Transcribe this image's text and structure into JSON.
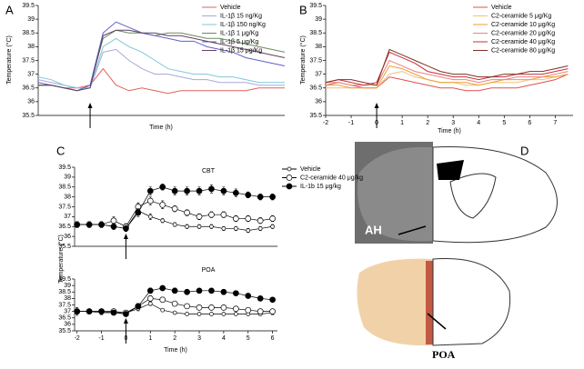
{
  "chart_data": [
    {
      "type": "line",
      "panel_label": "A",
      "xlabel": "Time (h)",
      "ylabel": "Temperature (°C)",
      "x": [
        -2,
        -1.5,
        -1,
        -0.5,
        0,
        0.5,
        1,
        1.5,
        2,
        2.5,
        3,
        3.5,
        4,
        4.5,
        5,
        5.5,
        6,
        6.5,
        7,
        7.5
      ],
      "xlim": [
        -2,
        7.5
      ],
      "arrow_x": 0,
      "ylim": [
        35.5,
        39.5
      ],
      "yticks": [
        35.5,
        36,
        36.5,
        37,
        37.5,
        38,
        38.5,
        39,
        39.5
      ],
      "series": [
        {
          "name": "Vehicle",
          "color": "#e06060",
          "values": [
            36.6,
            36.6,
            36.5,
            36.5,
            36.6,
            37.2,
            36.6,
            36.4,
            36.5,
            36.4,
            36.3,
            36.4,
            36.4,
            36.4,
            36.4,
            36.4,
            36.4,
            36.5,
            36.5,
            36.5
          ]
        },
        {
          "name": "IL-1β 15 ng/Kg",
          "color": "#a8a8d8",
          "values": [
            36.8,
            36.7,
            36.6,
            36.5,
            36.5,
            37.8,
            37.9,
            37.5,
            37.2,
            37.0,
            37.0,
            36.9,
            36.8,
            36.8,
            36.7,
            36.7,
            36.7,
            36.6,
            36.6,
            36.6
          ]
        },
        {
          "name": "IL-1β 150 ng/Kg",
          "color": "#80c8d8",
          "values": [
            36.9,
            36.8,
            36.6,
            36.5,
            36.5,
            38.0,
            38.3,
            38.0,
            37.8,
            37.5,
            37.2,
            37.1,
            37.0,
            37.0,
            36.9,
            36.9,
            36.8,
            36.7,
            36.7,
            36.7
          ]
        },
        {
          "name": "IL-1β 1 μg/Kg",
          "color": "#6a8a60",
          "values": [
            36.6,
            36.6,
            36.5,
            36.4,
            36.6,
            38.3,
            38.6,
            38.5,
            38.5,
            38.4,
            38.5,
            38.5,
            38.4,
            38.3,
            38.3,
            38.2,
            38.1,
            38.0,
            37.9,
            37.8
          ]
        },
        {
          "name": "IL-1β 5 μg/Kg",
          "color": "#6060c8",
          "values": [
            36.7,
            36.6,
            36.5,
            36.4,
            36.6,
            38.5,
            38.9,
            38.7,
            38.5,
            38.4,
            38.3,
            38.2,
            38.2,
            38.0,
            37.9,
            37.8,
            37.6,
            37.5,
            37.4,
            37.3
          ]
        },
        {
          "name": "IL-1β 15 μg/Kg",
          "color": "#604060",
          "values": [
            36.6,
            36.6,
            36.5,
            36.4,
            36.5,
            38.4,
            38.6,
            38.6,
            38.5,
            38.5,
            38.4,
            38.4,
            38.3,
            38.2,
            38.1,
            38.0,
            37.9,
            37.8,
            37.7,
            37.6
          ]
        }
      ]
    },
    {
      "type": "line",
      "panel_label": "B",
      "xlabel": "Time (h)",
      "ylabel": "Temperature (°C)",
      "x": [
        -2,
        -1.5,
        -1,
        -0.5,
        0,
        0.5,
        1,
        1.5,
        2,
        2.5,
        3,
        3.5,
        4,
        4.5,
        5,
        5.5,
        6,
        6.5,
        7,
        7.5
      ],
      "xlim": [
        -2,
        7.7
      ],
      "arrow_x": 0,
      "xticks": [
        -2,
        -1,
        0,
        1,
        2,
        3,
        4,
        5,
        6,
        7
      ],
      "ylim": [
        35.5,
        39.5
      ],
      "yticks": [
        35.5,
        36,
        36.5,
        37,
        37.5,
        38,
        38.5,
        39,
        39.5
      ],
      "series": [
        {
          "name": "Vehicle",
          "color": "#e05050",
          "values": [
            36.6,
            36.7,
            36.6,
            36.5,
            36.5,
            36.9,
            36.8,
            36.7,
            36.6,
            36.5,
            36.5,
            36.4,
            36.4,
            36.5,
            36.5,
            36.5,
            36.6,
            36.7,
            36.8,
            37.0
          ]
        },
        {
          "name": "C2-ceramide 5 μg/Kg",
          "color": "#f0c080",
          "values": [
            36.5,
            36.5,
            36.5,
            36.5,
            36.5,
            37.0,
            37.1,
            36.9,
            36.8,
            36.7,
            36.7,
            36.6,
            36.6,
            36.7,
            36.7,
            36.7,
            36.8,
            36.8,
            36.9,
            37.0
          ]
        },
        {
          "name": "C2-ceramide 10 μg/Kg",
          "color": "#e8a030",
          "values": [
            36.6,
            36.6,
            36.5,
            36.5,
            36.5,
            37.3,
            37.2,
            37.0,
            36.8,
            36.7,
            36.7,
            36.7,
            36.6,
            36.7,
            36.8,
            36.8,
            36.8,
            36.9,
            36.9,
            37.0
          ]
        },
        {
          "name": "C2-ceramide 20 μg/Kg",
          "color": "#f08080",
          "values": [
            36.7,
            36.7,
            36.6,
            36.6,
            36.6,
            37.5,
            37.3,
            37.1,
            37.0,
            36.9,
            36.8,
            36.8,
            36.7,
            36.8,
            36.8,
            36.9,
            36.9,
            36.9,
            37.0,
            37.1
          ]
        },
        {
          "name": "C2-ceramide 40 μg/Kg",
          "color": "#c03040",
          "values": [
            36.7,
            36.8,
            36.7,
            36.6,
            36.7,
            37.8,
            37.6,
            37.4,
            37.1,
            37.0,
            36.9,
            36.9,
            36.8,
            36.9,
            36.9,
            37.0,
            37.0,
            37.0,
            37.1,
            37.2
          ]
        },
        {
          "name": "C2-ceramide 80 μg/Kg",
          "color": "#803020",
          "values": [
            36.7,
            36.8,
            36.8,
            36.7,
            36.6,
            37.9,
            37.7,
            37.5,
            37.3,
            37.1,
            37.0,
            37.0,
            36.9,
            36.9,
            37.0,
            37.0,
            37.1,
            37.1,
            37.2,
            37.3
          ]
        }
      ]
    },
    {
      "type": "line",
      "panel_label": "C",
      "title": "CBT",
      "ylabel": "Temperature (°C)",
      "x": [
        -2,
        -1.5,
        -1,
        -0.5,
        0,
        0.5,
        1,
        1.5,
        2,
        2.5,
        3,
        3.5,
        4,
        4.5,
        5,
        5.5,
        6
      ],
      "xlim": [
        -2.1,
        6.2
      ],
      "arrow_x": 0,
      "ylim": [
        35.5,
        39.5
      ],
      "yticks": [
        35.5,
        36,
        36.5,
        37,
        37.5,
        38,
        38.5,
        39,
        39.5
      ],
      "series": [
        {
          "name": "Vehicle",
          "color": "#000000",
          "marker": "open",
          "marker_size": 2,
          "values": [
            36.6,
            36.6,
            36.6,
            36.5,
            36.4,
            37.3,
            37.0,
            36.8,
            36.6,
            36.5,
            36.5,
            36.5,
            36.4,
            36.4,
            36.3,
            36.4,
            36.5
          ],
          "errors": [
            0.1,
            0.1,
            0.1,
            0.1,
            0.1,
            0.15,
            0.15,
            0.1,
            0.1,
            0.1,
            0.1,
            0.1,
            0.1,
            0.1,
            0.1,
            0.1,
            0.1
          ]
        },
        {
          "name": "C2-ceramide 40 μg/kg",
          "color": "#000000",
          "marker": "open",
          "marker_size": 3,
          "values": [
            36.6,
            36.6,
            36.6,
            36.8,
            36.5,
            37.5,
            37.8,
            37.6,
            37.4,
            37.2,
            37.0,
            37.1,
            37.1,
            36.9,
            36.9,
            36.8,
            36.9
          ],
          "errors": [
            0.15,
            0.15,
            0.15,
            0.2,
            0.15,
            0.2,
            0.2,
            0.2,
            0.15,
            0.15,
            0.15,
            0.15,
            0.15,
            0.15,
            0.15,
            0.15,
            0.15
          ]
        },
        {
          "name": "IL-1b 15 μg/kg",
          "color": "#000000",
          "marker": "filled",
          "marker_size": 3,
          "values": [
            36.6,
            36.6,
            36.6,
            36.5,
            36.4,
            37.2,
            38.3,
            38.5,
            38.3,
            38.3,
            38.3,
            38.4,
            38.3,
            38.2,
            38.1,
            38.0,
            38.0
          ],
          "errors": [
            0.15,
            0.15,
            0.15,
            0.15,
            0.15,
            0.2,
            0.2,
            0.15,
            0.2,
            0.2,
            0.2,
            0.2,
            0.2,
            0.2,
            0.15,
            0.15,
            0.15
          ]
        }
      ]
    },
    {
      "type": "line",
      "title": "POA",
      "xlabel": "Time (h)",
      "x": [
        -2,
        -1.5,
        -1,
        -0.5,
        0,
        0.5,
        1,
        1.5,
        2,
        2.5,
        3,
        3.5,
        4,
        4.5,
        5,
        5.5,
        6
      ],
      "xlim": [
        -2.1,
        6.2
      ],
      "arrow_x": 0,
      "xticks": [
        -2,
        -1,
        0,
        1,
        2,
        3,
        4,
        5,
        6
      ],
      "ylim": [
        35.5,
        39.5
      ],
      "yticks": [
        35.5,
        36,
        36.5,
        37,
        37.5,
        38,
        38.5,
        39,
        39.5
      ],
      "series": [
        {
          "color": "#000000",
          "marker": "open",
          "marker_size": 2,
          "values": [
            37.0,
            37.0,
            36.9,
            36.9,
            36.9,
            37.2,
            37.6,
            37.1,
            36.9,
            36.8,
            36.8,
            36.8,
            36.8,
            36.8,
            36.8,
            36.8,
            36.9
          ],
          "errors": [
            0.3,
            0.15,
            0.15,
            0.1,
            0.1,
            0.15,
            0.15,
            0.1,
            0.1,
            0.1,
            0.1,
            0.1,
            0.1,
            0.1,
            0.1,
            0.1,
            0.15
          ]
        },
        {
          "color": "#000000",
          "marker": "open",
          "marker_size": 3,
          "values": [
            37.0,
            37.0,
            37.0,
            37.0,
            36.9,
            37.4,
            38.0,
            37.9,
            37.6,
            37.4,
            37.3,
            37.3,
            37.3,
            37.2,
            37.1,
            37.0,
            37.0
          ],
          "errors": [
            0.2,
            0.15,
            0.15,
            0.15,
            0.15,
            0.2,
            0.2,
            0.2,
            0.15,
            0.15,
            0.15,
            0.15,
            0.15,
            0.15,
            0.15,
            0.15,
            0.15
          ]
        },
        {
          "color": "#000000",
          "marker": "filled",
          "marker_size": 3,
          "values": [
            37.0,
            37.0,
            37.0,
            36.9,
            36.8,
            37.4,
            38.6,
            38.8,
            38.6,
            38.5,
            38.6,
            38.6,
            38.5,
            38.4,
            38.2,
            38.0,
            37.9
          ],
          "errors": [
            0.2,
            0.15,
            0.15,
            0.15,
            0.15,
            0.2,
            0.2,
            0.15,
            0.2,
            0.2,
            0.15,
            0.15,
            0.2,
            0.15,
            0.15,
            0.15,
            0.15
          ]
        }
      ]
    }
  ],
  "figure_d": {
    "panel_label": "D",
    "label_top": "AH",
    "label_bottom": "POA"
  }
}
